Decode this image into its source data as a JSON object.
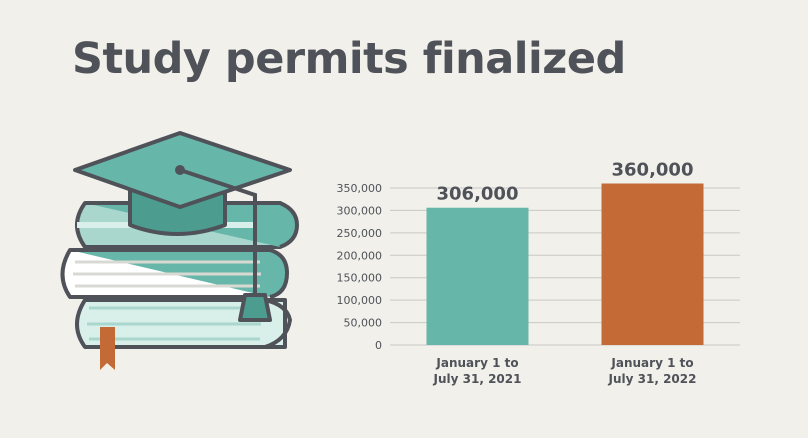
{
  "page": {
    "title": "Study permits finalized"
  },
  "colors": {
    "teal": "#67b6aa",
    "orange": "#c36a36",
    "text": "#4f5258",
    "grid": "#c9c9c5",
    "background": "#f1f0eb"
  },
  "illustration": {
    "icon": "graduation-cap-on-books-icon"
  },
  "chart_data": {
    "type": "bar",
    "title": "",
    "xlabel": "",
    "ylabel": "",
    "grid": true,
    "ylim": [
      0,
      350000
    ],
    "yticks": [
      0,
      50000,
      100000,
      150000,
      200000,
      250000,
      300000,
      350000
    ],
    "ytick_labels": [
      "0",
      "50,000",
      "100,000",
      "150,000",
      "200,000",
      "250,000",
      "300,000",
      "350,000"
    ],
    "categories": [
      [
        "January 1 to",
        "July 31, 2021"
      ],
      [
        "January 1 to",
        "July 31, 2022"
      ]
    ],
    "values": [
      306000,
      360000
    ],
    "data_labels": [
      "306,000",
      "360,000"
    ],
    "bar_colors": [
      "#67b6aa",
      "#c36a36"
    ]
  }
}
